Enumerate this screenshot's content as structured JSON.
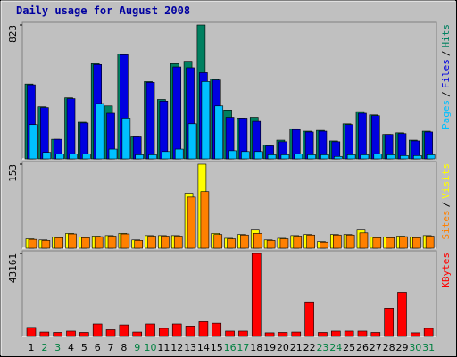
{
  "title": "Daily usage for August 2008",
  "chart_data": [
    {
      "type": "bar",
      "ylim": [
        0,
        823
      ],
      "yticks": [
        823
      ],
      "legend_separator": "/",
      "series": [
        {
          "name": "Hits",
          "color": "#008060",
          "values": [
            460,
            320,
            120,
            375,
            225,
            585,
            325,
            645,
            140,
            475,
            365,
            585,
            600,
            823,
            490,
            300,
            250,
            255,
            85,
            115,
            185,
            170,
            175,
            110,
            215,
            290,
            270,
            150,
            160,
            115,
            170
          ]
        },
        {
          "name": "Files",
          "color": "#0000e0",
          "values": [
            455,
            315,
            120,
            370,
            220,
            580,
            280,
            640,
            140,
            470,
            355,
            565,
            560,
            530,
            485,
            255,
            250,
            230,
            80,
            105,
            180,
            165,
            170,
            105,
            210,
            280,
            265,
            150,
            155,
            110,
            165
          ]
        },
        {
          "name": "Pages",
          "color": "#00c0ff",
          "values": [
            210,
            40,
            30,
            30,
            30,
            340,
            60,
            250,
            25,
            25,
            45,
            60,
            215,
            475,
            325,
            50,
            45,
            45,
            25,
            25,
            30,
            25,
            25,
            15,
            25,
            25,
            30,
            25,
            20,
            20,
            25
          ]
        }
      ]
    },
    {
      "type": "bar",
      "ylim": [
        0,
        153
      ],
      "yticks": [
        153
      ],
      "legend_separator": "/",
      "series": [
        {
          "name": "Visits",
          "color": "#ffff00",
          "values": [
            17,
            15,
            20,
            27,
            20,
            22,
            23,
            27,
            15,
            23,
            23,
            23,
            100,
            153,
            27,
            18,
            25,
            33,
            15,
            18,
            23,
            25,
            12,
            25,
            25,
            33,
            20,
            20,
            22,
            20,
            23
          ]
        },
        {
          "name": "Sites",
          "color": "#ff8000",
          "values": [
            16,
            14,
            19,
            26,
            19,
            21,
            22,
            26,
            14,
            22,
            22,
            22,
            93,
            103,
            25,
            17,
            24,
            27,
            14,
            17,
            22,
            24,
            11,
            24,
            24,
            28,
            19,
            19,
            21,
            19,
            22
          ]
        }
      ]
    },
    {
      "type": "bar",
      "ylim": [
        0,
        43161
      ],
      "yticks": [
        43161
      ],
      "series": [
        {
          "name": "KBytes",
          "color": "#ff0000",
          "values": [
            4700,
            2300,
            2100,
            2800,
            2100,
            6500,
            3500,
            6000,
            2300,
            6500,
            4200,
            6500,
            5400,
            7700,
            6900,
            2800,
            2800,
            43161,
            1900,
            2100,
            2300,
            18000,
            2100,
            2800,
            2800,
            2800,
            2100,
            14700,
            23000,
            1900,
            4200
          ]
        }
      ],
      "categories": [
        "1",
        "2",
        "3",
        "4",
        "5",
        "6",
        "7",
        "8",
        "9",
        "10",
        "11",
        "12",
        "13",
        "14",
        "15",
        "16",
        "17",
        "18",
        "19",
        "20",
        "21",
        "22",
        "23",
        "24",
        "25",
        "26",
        "27",
        "28",
        "29",
        "30",
        "31"
      ],
      "category_colors": [
        "#000000",
        "#008040",
        "#008040",
        "#000000",
        "#000000",
        "#000000",
        "#000000",
        "#000000",
        "#008040",
        "#008040",
        "#000000",
        "#000000",
        "#000000",
        "#000000",
        "#000000",
        "#008040",
        "#008040",
        "#000000",
        "#000000",
        "#000000",
        "#000000",
        "#000000",
        "#008040",
        "#008040",
        "#000000",
        "#000000",
        "#000000",
        "#000000",
        "#000000",
        "#008040",
        "#008040"
      ]
    }
  ]
}
